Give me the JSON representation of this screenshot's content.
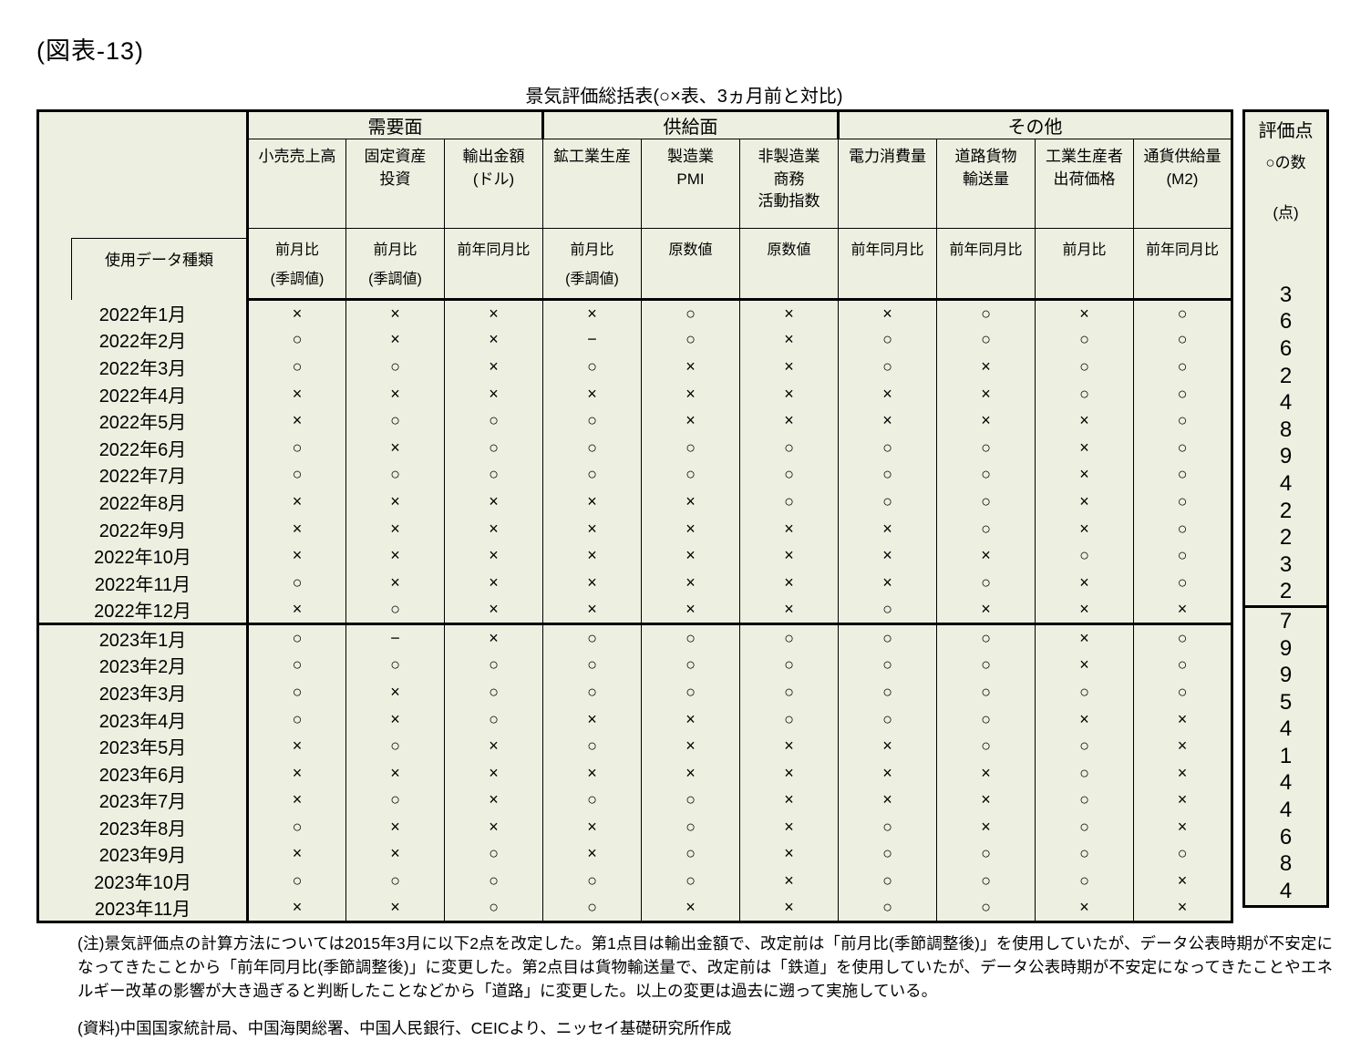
{
  "page": {
    "figure_label": "(図表-13)",
    "caption": "景気評価総括表(○×表、3ヵ月前と対比)"
  },
  "colors": {
    "table_bg": "#edefe0",
    "border": "#000000",
    "text": "#000000"
  },
  "table": {
    "row_label_header": "使用データ種類",
    "groups": [
      {
        "label": "需要面",
        "span": 3
      },
      {
        "label": "供給面",
        "span": 3
      },
      {
        "label": "その他",
        "span": 4
      }
    ],
    "columns": [
      {
        "label": "小売売上高",
        "data_type": "前月比\n(季調値)"
      },
      {
        "label": "固定資産\n投資",
        "data_type": "前月比\n(季調値)"
      },
      {
        "label": "輸出金額\n(ドル)",
        "data_type": "前年同月比"
      },
      {
        "label": "鉱工業生産",
        "data_type": "前月比\n(季調値)"
      },
      {
        "label": "製造業\nPMI",
        "data_type": "原数値"
      },
      {
        "label": "非製造業\n商務\n活動指数",
        "data_type": "原数値"
      },
      {
        "label": "電力消費量",
        "data_type": "前年同月比"
      },
      {
        "label": "道路貨物\n輸送量",
        "data_type": "前年同月比"
      },
      {
        "label": "工業生産者\n出荷価格",
        "data_type": "前月比"
      },
      {
        "label": "通貨供給量\n(M2)",
        "data_type": "前年同月比"
      }
    ],
    "score": {
      "title": "評価点",
      "subtitle": "○の数",
      "unit": "(点)"
    },
    "rows": [
      {
        "month": "2022年1月",
        "marks": [
          "×",
          "×",
          "×",
          "×",
          "○",
          "×",
          "×",
          "○",
          "×",
          "○"
        ],
        "score": 3
      },
      {
        "month": "2022年2月",
        "marks": [
          "○",
          "×",
          "×",
          "−",
          "○",
          "×",
          "○",
          "○",
          "○",
          "○"
        ],
        "score": 6
      },
      {
        "month": "2022年3月",
        "marks": [
          "○",
          "○",
          "×",
          "○",
          "×",
          "×",
          "○",
          "×",
          "○",
          "○"
        ],
        "score": 6
      },
      {
        "month": "2022年4月",
        "marks": [
          "×",
          "×",
          "×",
          "×",
          "×",
          "×",
          "×",
          "×",
          "○",
          "○"
        ],
        "score": 2
      },
      {
        "month": "2022年5月",
        "marks": [
          "×",
          "○",
          "○",
          "○",
          "×",
          "×",
          "×",
          "×",
          "×",
          "○"
        ],
        "score": 4
      },
      {
        "month": "2022年6月",
        "marks": [
          "○",
          "×",
          "○",
          "○",
          "○",
          "○",
          "○",
          "○",
          "×",
          "○"
        ],
        "score": 8
      },
      {
        "month": "2022年7月",
        "marks": [
          "○",
          "○",
          "○",
          "○",
          "○",
          "○",
          "○",
          "○",
          "×",
          "○"
        ],
        "score": 9
      },
      {
        "month": "2022年8月",
        "marks": [
          "×",
          "×",
          "×",
          "×",
          "×",
          "○",
          "○",
          "○",
          "×",
          "○"
        ],
        "score": 4
      },
      {
        "month": "2022年9月",
        "marks": [
          "×",
          "×",
          "×",
          "×",
          "×",
          "×",
          "×",
          "○",
          "×",
          "○"
        ],
        "score": 2
      },
      {
        "month": "2022年10月",
        "marks": [
          "×",
          "×",
          "×",
          "×",
          "×",
          "×",
          "×",
          "×",
          "○",
          "○"
        ],
        "score": 2
      },
      {
        "month": "2022年11月",
        "marks": [
          "○",
          "×",
          "×",
          "×",
          "×",
          "×",
          "×",
          "○",
          "×",
          "○"
        ],
        "score": 3
      },
      {
        "month": "2022年12月",
        "marks": [
          "×",
          "○",
          "×",
          "×",
          "×",
          "×",
          "○",
          "×",
          "×",
          "×"
        ],
        "score": 2
      },
      {
        "month": "2023年1月",
        "marks": [
          "○",
          "−",
          "×",
          "○",
          "○",
          "○",
          "○",
          "○",
          "×",
          "○"
        ],
        "score": 7
      },
      {
        "month": "2023年2月",
        "marks": [
          "○",
          "○",
          "○",
          "○",
          "○",
          "○",
          "○",
          "○",
          "×",
          "○"
        ],
        "score": 9
      },
      {
        "month": "2023年3月",
        "marks": [
          "○",
          "×",
          "○",
          "○",
          "○",
          "○",
          "○",
          "○",
          "○",
          "○"
        ],
        "score": 9
      },
      {
        "month": "2023年4月",
        "marks": [
          "○",
          "×",
          "○",
          "×",
          "×",
          "○",
          "○",
          "○",
          "×",
          "×"
        ],
        "score": 5
      },
      {
        "month": "2023年5月",
        "marks": [
          "×",
          "○",
          "×",
          "○",
          "×",
          "×",
          "×",
          "○",
          "○",
          "×"
        ],
        "score": 4
      },
      {
        "month": "2023年6月",
        "marks": [
          "×",
          "×",
          "×",
          "×",
          "×",
          "×",
          "×",
          "×",
          "○",
          "×"
        ],
        "score": 1
      },
      {
        "month": "2023年7月",
        "marks": [
          "×",
          "○",
          "×",
          "○",
          "○",
          "×",
          "×",
          "×",
          "○",
          "×"
        ],
        "score": 4
      },
      {
        "month": "2023年8月",
        "marks": [
          "○",
          "×",
          "×",
          "×",
          "○",
          "×",
          "○",
          "×",
          "○",
          "×"
        ],
        "score": 4
      },
      {
        "month": "2023年9月",
        "marks": [
          "×",
          "×",
          "○",
          "×",
          "○",
          "×",
          "○",
          "○",
          "○",
          "○"
        ],
        "score": 6
      },
      {
        "month": "2023年10月",
        "marks": [
          "○",
          "○",
          "○",
          "○",
          "○",
          "×",
          "○",
          "○",
          "○",
          "×"
        ],
        "score": 8
      },
      {
        "month": "2023年11月",
        "marks": [
          "×",
          "×",
          "○",
          "○",
          "×",
          "×",
          "○",
          "○",
          "×",
          "×"
        ],
        "score": 4
      }
    ]
  },
  "notes": {
    "note": "(注)景気評価点の計算方法については2015年3月に以下2点を改定した。第1点目は輸出金額で、改定前は「前月比(季節調整後)」を使用していたが、データ公表時期が不安定になってきたことから「前年同月比(季節調整後)」に変更した。第2点目は貨物輸送量で、改定前は「鉄道」を使用していたが、データ公表時期が不安定になってきたことやエネルギー改革の影響が大き過ぎると判断したことなどから「道路」に変更した。以上の変更は過去に遡って実施している。",
    "source": "(資料)中国国家統計局、中国海関総署、中国人民銀行、CEICより、ニッセイ基礎研究所作成"
  }
}
